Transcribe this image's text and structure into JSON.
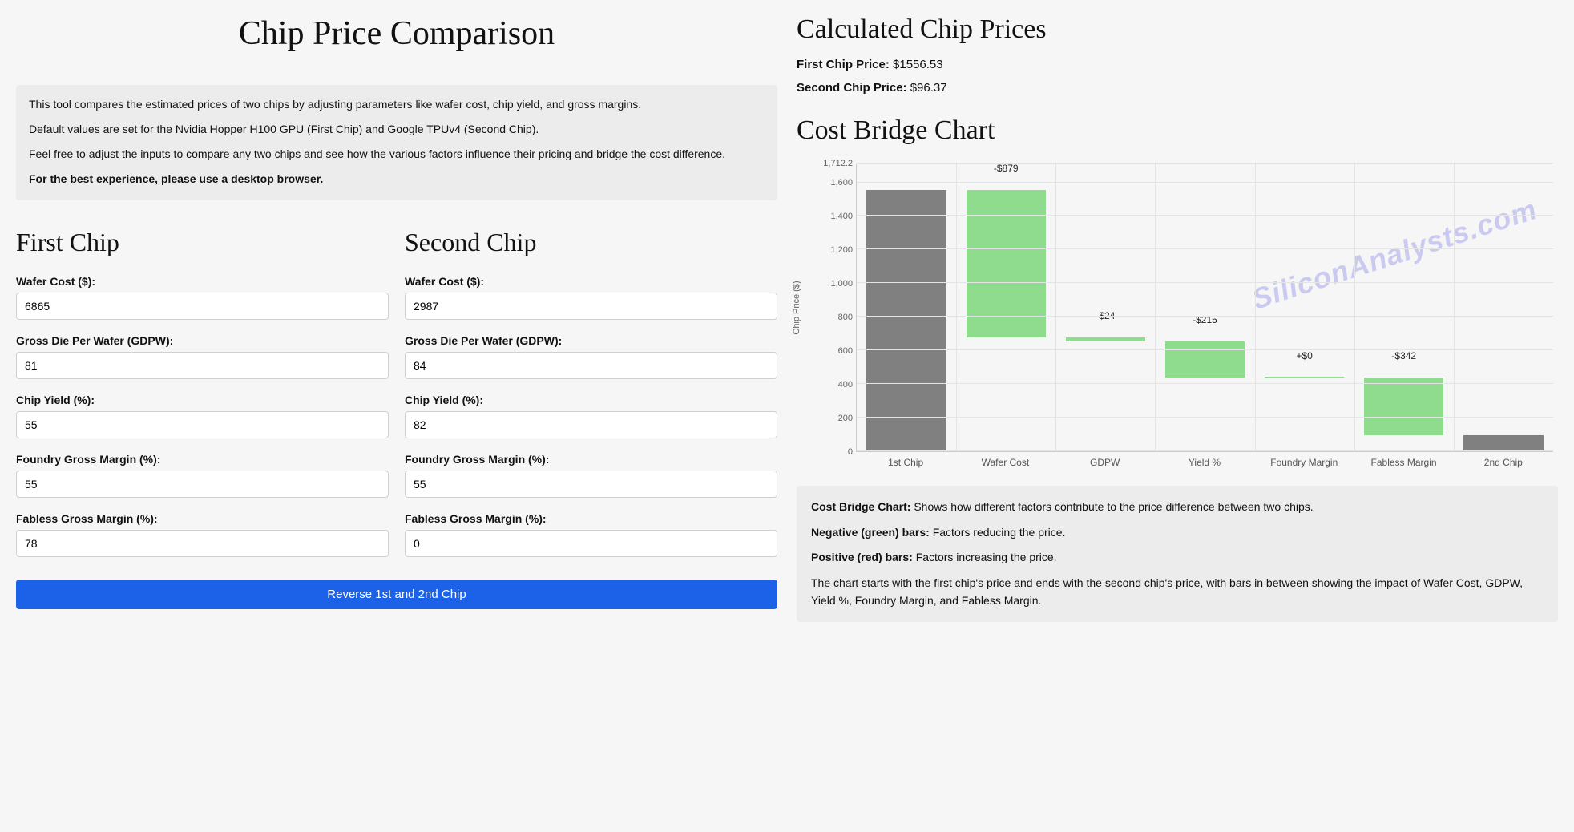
{
  "left": {
    "title": "Chip Price Comparison",
    "intro": {
      "p1": "This tool compares the estimated prices of two chips by adjusting parameters like wafer cost, chip yield, and gross margins.",
      "p2": "Default values are set for the Nvidia Hopper H100 GPU (First Chip) and Google TPUv4 (Second Chip).",
      "p3": "Feel free to adjust the inputs to compare any two chips and see how the various factors influence their pricing and bridge the cost difference.",
      "p4": "For the best experience, please use a desktop browser."
    },
    "first_chip": {
      "heading": "First Chip",
      "fields": {
        "wafer_cost": {
          "label": "Wafer Cost ($):",
          "value": "6865"
        },
        "gdpw": {
          "label": "Gross Die Per Wafer (GDPW):",
          "value": "81"
        },
        "yield": {
          "label": "Chip Yield (%):",
          "value": "55"
        },
        "foundry_margin": {
          "label": "Foundry Gross Margin (%):",
          "value": "55"
        },
        "fabless_margin": {
          "label": "Fabless Gross Margin (%):",
          "value": "78"
        }
      }
    },
    "second_chip": {
      "heading": "Second Chip",
      "fields": {
        "wafer_cost": {
          "label": "Wafer Cost ($):",
          "value": "2987"
        },
        "gdpw": {
          "label": "Gross Die Per Wafer (GDPW):",
          "value": "84"
        },
        "yield": {
          "label": "Chip Yield (%):",
          "value": "82"
        },
        "foundry_margin": {
          "label": "Foundry Gross Margin (%):",
          "value": "55"
        },
        "fabless_margin": {
          "label": "Fabless Gross Margin (%):",
          "value": "0"
        }
      }
    },
    "reverse_button": "Reverse 1st and 2nd Chip"
  },
  "right": {
    "calc_heading": "Calculated Chip Prices",
    "first_price": {
      "label": "First Chip Price:",
      "value": "$1556.53"
    },
    "second_price": {
      "label": "Second Chip Price:",
      "value": "$96.37"
    },
    "chart_heading": "Cost Bridge Chart",
    "watermark": "SiliconAnalysts.com",
    "chart": {
      "type": "waterfall",
      "y_axis_label": "Chip Price ($)",
      "y_max": 1712.2,
      "y_ticks": [
        0,
        200,
        400,
        600,
        800,
        1000,
        1200,
        1400,
        1600,
        1712.2
      ],
      "y_tick_labels": [
        "0",
        "200",
        "400",
        "600",
        "800",
        "1,000",
        "1,200",
        "1,400",
        "1,600",
        "1,712.2"
      ],
      "categories": [
        "1st Chip",
        "Wafer Cost",
        "GDPW",
        "Yield %",
        "Foundry Margin",
        "Fabless Margin",
        "2nd Chip"
      ],
      "bars": [
        {
          "label": "",
          "start": 0,
          "end": 1556.53,
          "color": "#808080"
        },
        {
          "label": "-$879",
          "start": 677.53,
          "end": 1556.53,
          "color": "#8fdc8f"
        },
        {
          "label": "-$24",
          "start": 653.53,
          "end": 677.53,
          "color": "#8fdc8f"
        },
        {
          "label": "-$215",
          "start": 438.53,
          "end": 653.53,
          "color": "#8fdc8f"
        },
        {
          "label": "+$0",
          "start": 438.53,
          "end": 438.53,
          "color": "#8fdc8f"
        },
        {
          "label": "-$342",
          "start": 96.53,
          "end": 438.53,
          "color": "#8fdc8f"
        },
        {
          "label": "",
          "start": 0,
          "end": 96.37,
          "color": "#808080"
        }
      ],
      "background_color": "#f6f6f6",
      "grid_color": "#e4e4e4",
      "axis_fontsize": 11,
      "label_fontsize": 12
    },
    "explain": {
      "p1_lead": "Cost Bridge Chart:",
      "p1_rest": " Shows how different factors contribute to the price difference between two chips.",
      "p2_lead": "Negative (green) bars:",
      "p2_rest": " Factors reducing the price.",
      "p3_lead": "Positive (red) bars:",
      "p3_rest": " Factors increasing the price.",
      "p4": "The chart starts with the first chip's price and ends with the second chip's price, with bars in between showing the impact of Wafer Cost, GDPW, Yield %, Foundry Margin, and Fabless Margin."
    }
  }
}
